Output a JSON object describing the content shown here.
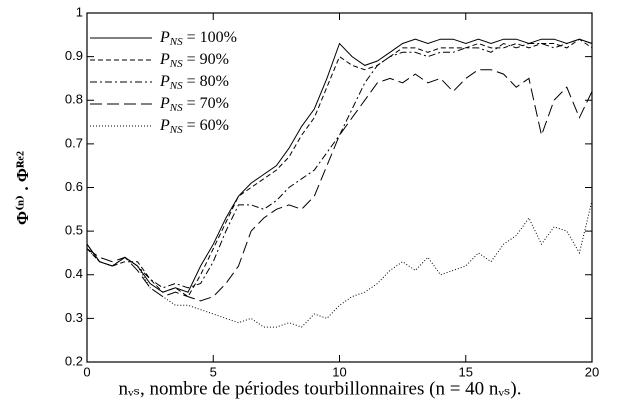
{
  "chart_data": {
    "type": "line",
    "ylabel": "Φ⁽ⁿ⁾ . Φᴿᵉ²",
    "xlabel": "nᵥₛ, nombre de périodes tourbillonnaires (n = 40 nᵥₛ).",
    "x": [
      0,
      0.5,
      1,
      1.5,
      2,
      2.5,
      3,
      3.5,
      4,
      4.5,
      5,
      5.5,
      6,
      6.5,
      7,
      7.5,
      8,
      8.5,
      9,
      9.5,
      10,
      10.5,
      11,
      11.5,
      12,
      12.5,
      13,
      13.5,
      14,
      14.5,
      15,
      15.5,
      16,
      16.5,
      17,
      17.5,
      18,
      18.5,
      19,
      19.5,
      20
    ],
    "series": [
      {
        "name": "P_NS = 100%",
        "color": "#000000",
        "dash": "none",
        "values": [
          0.47,
          0.43,
          0.42,
          0.44,
          0.42,
          0.38,
          0.36,
          0.37,
          0.36,
          0.42,
          0.47,
          0.53,
          0.58,
          0.61,
          0.63,
          0.65,
          0.69,
          0.74,
          0.78,
          0.85,
          0.93,
          0.9,
          0.88,
          0.89,
          0.91,
          0.93,
          0.94,
          0.93,
          0.94,
          0.94,
          0.93,
          0.94,
          0.93,
          0.94,
          0.94,
          0.93,
          0.94,
          0.94,
          0.93,
          0.94,
          0.93
        ]
      },
      {
        "name": "P_NS = 90%",
        "color": "#000000",
        "dash": "5,3",
        "values": [
          0.46,
          0.43,
          0.42,
          0.43,
          0.43,
          0.39,
          0.36,
          0.37,
          0.35,
          0.4,
          0.46,
          0.52,
          0.58,
          0.6,
          0.62,
          0.64,
          0.67,
          0.72,
          0.76,
          0.83,
          0.9,
          0.88,
          0.87,
          0.88,
          0.9,
          0.92,
          0.92,
          0.91,
          0.92,
          0.92,
          0.92,
          0.93,
          0.92,
          0.92,
          0.93,
          0.92,
          0.93,
          0.93,
          0.92,
          0.94,
          0.92
        ]
      },
      {
        "name": "P_NS = 80%",
        "color": "#000000",
        "dash": "7,3,2,3",
        "values": [
          0.47,
          0.43,
          0.42,
          0.44,
          0.42,
          0.39,
          0.37,
          0.38,
          0.37,
          0.38,
          0.43,
          0.5,
          0.56,
          0.56,
          0.55,
          0.57,
          0.6,
          0.62,
          0.64,
          0.68,
          0.72,
          0.78,
          0.84,
          0.88,
          0.9,
          0.91,
          0.91,
          0.9,
          0.91,
          0.91,
          0.92,
          0.92,
          0.91,
          0.93,
          0.92,
          0.93,
          0.93,
          0.92,
          0.93,
          0.94,
          0.93
        ]
      },
      {
        "name": "P_NS = 70%",
        "color": "#000000",
        "dash": "12,5",
        "values": [
          0.46,
          0.44,
          0.43,
          0.44,
          0.41,
          0.37,
          0.35,
          0.36,
          0.35,
          0.34,
          0.35,
          0.38,
          0.42,
          0.5,
          0.53,
          0.55,
          0.56,
          0.55,
          0.58,
          0.65,
          0.72,
          0.76,
          0.8,
          0.84,
          0.85,
          0.84,
          0.86,
          0.84,
          0.85,
          0.82,
          0.85,
          0.87,
          0.87,
          0.86,
          0.83,
          0.85,
          0.72,
          0.8,
          0.83,
          0.76,
          0.82
        ]
      },
      {
        "name": "P_NS = 60%",
        "color": "#000000",
        "dash": "1,2",
        "values": [
          0.46,
          0.43,
          0.42,
          0.44,
          0.42,
          0.37,
          0.35,
          0.33,
          0.33,
          0.32,
          0.31,
          0.3,
          0.29,
          0.3,
          0.28,
          0.28,
          0.29,
          0.28,
          0.31,
          0.3,
          0.33,
          0.35,
          0.36,
          0.38,
          0.41,
          0.43,
          0.41,
          0.44,
          0.4,
          0.41,
          0.42,
          0.45,
          0.43,
          0.47,
          0.49,
          0.53,
          0.47,
          0.51,
          0.5,
          0.45,
          0.57
        ]
      }
    ],
    "xlim": [
      0,
      20
    ],
    "xticks": [
      0,
      5,
      10,
      15,
      20
    ],
    "ylim": [
      0.2,
      1
    ],
    "yticks": [
      0.2,
      0.3,
      0.4,
      0.5,
      0.6,
      0.7,
      0.8,
      0.9,
      1
    ],
    "grid": false,
    "legend": "upper left"
  }
}
